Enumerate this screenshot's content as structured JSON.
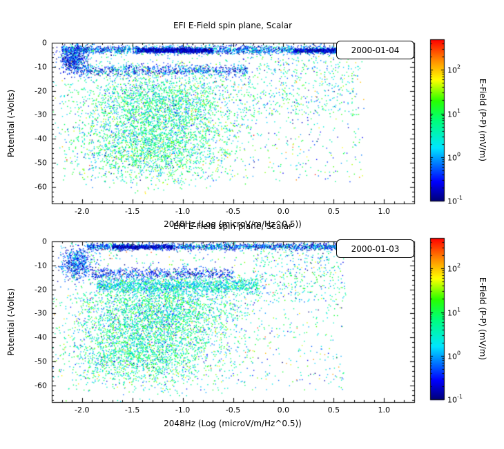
{
  "figure": {
    "background": "#ffffff",
    "axis_color": "#000000"
  },
  "colormap": {
    "stops": [
      [
        0,
        0,
        0,
        120
      ],
      [
        0.12,
        0,
        0,
        255
      ],
      [
        0.33,
        0,
        230,
        255
      ],
      [
        0.5,
        0,
        255,
        120
      ],
      [
        0.62,
        40,
        255,
        0
      ],
      [
        0.75,
        255,
        255,
        0
      ],
      [
        0.87,
        255,
        140,
        0
      ],
      [
        1,
        255,
        0,
        0
      ]
    ],
    "vlog_range": [
      -1,
      2.7
    ]
  },
  "colorbar": {
    "label": "E-Field (P-P) (mV/m)",
    "tick_base": "10",
    "tick_exponents": [
      "2",
      "1",
      "0",
      "-1"
    ]
  },
  "chart_data": [
    {
      "type": "scatter",
      "title": "EFI  E-Field spin plane, Scalar",
      "xlabel": "2048Hz (Log (microV/m/Hz^0.5))",
      "ylabel": "Potential (-Volts)",
      "zlabel": "E-Field (P-P) (mV/m)",
      "legend": "2000-01-04",
      "xlim": [
        -2.3,
        1.3
      ],
      "ylim": [
        -67,
        0
      ],
      "xticks": [
        -2.0,
        -1.5,
        -1.0,
        -0.5,
        0.0,
        0.5,
        1.0
      ],
      "xtick_labels": [
        "-2.0",
        "-1.5",
        "-1.0",
        "-0.5",
        "0.0",
        "0.5",
        "1.0"
      ],
      "yticks": [
        0,
        -10,
        -20,
        -30,
        -40,
        -50,
        -60
      ],
      "ytick_labels": [
        "0",
        "-10",
        "-20",
        "-30",
        "-40",
        "-50",
        "-60"
      ],
      "zrange_log10": [
        -1,
        2.7
      ],
      "grid": false,
      "seed": 20000104,
      "clusters": [
        {
          "n": 2200,
          "x": [
            "u",
            -2.2,
            0.72
          ],
          "y": [
            "g",
            -3.0,
            0.9
          ],
          "v": [
            "g",
            -0.2,
            0.55
          ]
        },
        {
          "n": 1400,
          "x": [
            "u",
            -1.45,
            -0.7
          ],
          "y": [
            "g",
            -3.2,
            0.45
          ],
          "v": [
            "g",
            -0.75,
            0.25
          ]
        },
        {
          "n": 700,
          "x": [
            "u",
            0.1,
            0.65
          ],
          "y": [
            "g",
            -3.3,
            0.4
          ],
          "v": [
            "g",
            -0.75,
            0.25
          ]
        },
        {
          "n": 600,
          "x": [
            "g",
            -2.08,
            0.07
          ],
          "y": [
            "g",
            -7.0,
            2.8
          ],
          "v": [
            "g",
            -0.5,
            0.45
          ]
        },
        {
          "n": 800,
          "x": [
            "u",
            -2.05,
            -0.35
          ],
          "y": [
            "g",
            -11.5,
            1.2
          ],
          "v": [
            "g",
            -0.35,
            0.5
          ]
        },
        {
          "n": 2600,
          "x": [
            "g",
            -1.2,
            0.42
          ],
          "y": [
            "g",
            -27.0,
            8.0
          ],
          "v": [
            "g",
            0.65,
            0.55
          ]
        },
        {
          "n": 1700,
          "x": [
            "g",
            -1.3,
            0.38
          ],
          "y": [
            "g",
            -45.0,
            6.5
          ],
          "v": [
            "g",
            0.7,
            0.55
          ]
        },
        {
          "n": 900,
          "x": [
            "u",
            -2.2,
            0.8
          ],
          "y": [
            "u",
            -58,
            -2
          ],
          "v": [
            "g",
            0.5,
            0.8
          ]
        },
        {
          "n": 350,
          "x": [
            "u",
            -0.4,
            0.75
          ],
          "y": [
            "u",
            -30,
            -6
          ],
          "v": [
            "g",
            0.6,
            0.6
          ]
        }
      ]
    },
    {
      "type": "scatter",
      "title": "EFI  E-Field spin plane, Scalar",
      "xlabel": "2048Hz (Log (microV/m/Hz^0.5))",
      "ylabel": "Potential (-Volts)",
      "zlabel": "E-Field (P-P) (mV/m)",
      "legend": "2000-01-03",
      "xlim": [
        -2.3,
        1.3
      ],
      "ylim": [
        -67,
        0
      ],
      "xticks": [
        -2.0,
        -1.5,
        -1.0,
        -0.5,
        0.0,
        0.5,
        1.0
      ],
      "xtick_labels": [
        "-2.0",
        "-1.5",
        "-1.0",
        "-0.5",
        "0.0",
        "0.5",
        "1.0"
      ],
      "yticks": [
        0,
        -10,
        -20,
        -30,
        -40,
        -50,
        -60
      ],
      "ytick_labels": [
        "0",
        "-10",
        "-20",
        "-30",
        "-40",
        "-50",
        "-60"
      ],
      "zrange_log10": [
        -1,
        2.7
      ],
      "grid": false,
      "seed": 20000103,
      "clusters": [
        {
          "n": 1800,
          "x": [
            "u",
            -1.95,
            0.62
          ],
          "y": [
            "g",
            -2.2,
            0.7
          ],
          "v": [
            "g",
            -0.3,
            0.6
          ]
        },
        {
          "n": 500,
          "x": [
            "u",
            -1.7,
            -1.1
          ],
          "y": [
            "g",
            -2.4,
            0.4
          ],
          "v": [
            "g",
            -0.75,
            0.25
          ]
        },
        {
          "n": 550,
          "x": [
            "g",
            -2.05,
            0.08
          ],
          "y": [
            "g",
            -9.0,
            3.5
          ],
          "v": [
            "g",
            -0.3,
            0.5
          ]
        },
        {
          "n": 600,
          "x": [
            "u",
            -1.9,
            -0.5
          ],
          "y": [
            "g",
            -13.5,
            1.2
          ],
          "v": [
            "g",
            -0.55,
            0.35
          ]
        },
        {
          "n": 1400,
          "x": [
            "u",
            -1.85,
            -0.25
          ],
          "y": [
            "g",
            -18.5,
            1.6
          ],
          "v": [
            "g",
            0.35,
            0.4
          ]
        },
        {
          "n": 2600,
          "x": [
            "g",
            -1.25,
            0.42
          ],
          "y": [
            "g",
            -30.0,
            7.5
          ],
          "v": [
            "g",
            0.6,
            0.55
          ]
        },
        {
          "n": 1900,
          "x": [
            "g",
            -1.4,
            0.38
          ],
          "y": [
            "g",
            -47.0,
            7.0
          ],
          "v": [
            "g",
            0.65,
            0.55
          ]
        },
        {
          "n": 1000,
          "x": [
            "u",
            -2.1,
            0.6
          ],
          "y": [
            "u",
            -62,
            -2
          ],
          "v": [
            "g",
            0.45,
            0.8
          ]
        },
        {
          "n": 300,
          "x": [
            "u",
            -0.3,
            0.62
          ],
          "y": [
            "u",
            -25,
            -4
          ],
          "v": [
            "g",
            0.5,
            0.6
          ]
        }
      ]
    }
  ]
}
